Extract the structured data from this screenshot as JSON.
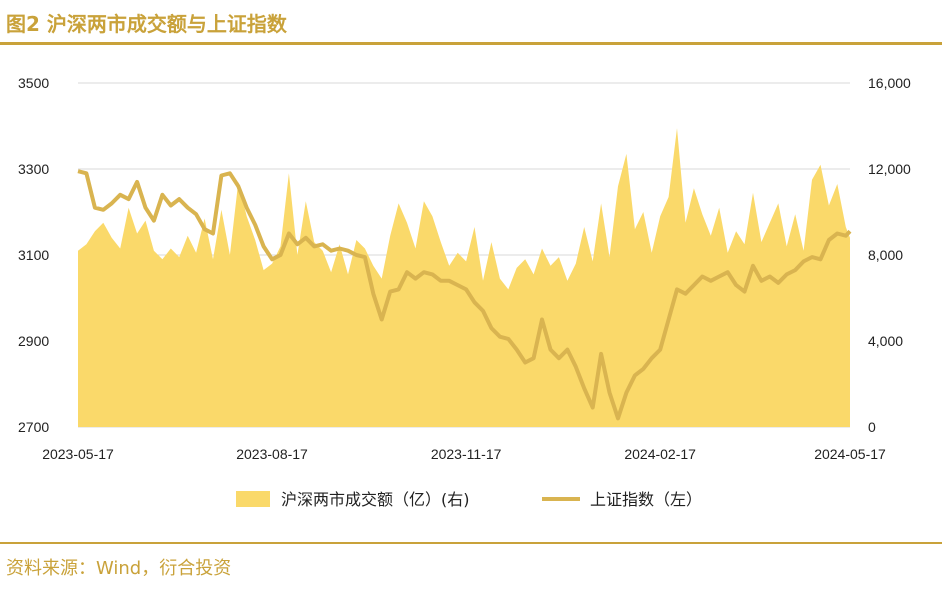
{
  "header": {
    "title": "图2  沪深两市成交额与上证指数"
  },
  "footer": {
    "source": "资料来源：Wind，衍合投资"
  },
  "colors": {
    "accent": "#C9A23A",
    "area_fill": "#FAD96A",
    "line": "#D9B450",
    "grid": "#D9D9D9"
  },
  "chart_data": {
    "type": "area",
    "title": "沪深两市成交额与上证指数",
    "x_ticks": [
      "2023-05-17",
      "2023-08-17",
      "2023-11-17",
      "2024-02-17",
      "2024-05-17"
    ],
    "y_left": {
      "ticks": [
        "3500",
        "3300",
        "3100",
        "2900",
        "2700"
      ],
      "range": [
        2700,
        3500
      ]
    },
    "y_right": {
      "ticks": [
        "16,000",
        "12,000",
        "8,000",
        "4,000",
        "0"
      ],
      "range": [
        0,
        16000
      ]
    },
    "grid": true,
    "legend_position": "bottom",
    "series": [
      {
        "name": "沪深两市成交额（亿）(右)",
        "axis": "right",
        "type": "area",
        "x": [
          "2023-05-17",
          "2023-05-21",
          "2023-05-25",
          "2023-05-29",
          "2023-06-02",
          "2023-06-06",
          "2023-06-10",
          "2023-06-14",
          "2023-06-18",
          "2023-06-22",
          "2023-06-26",
          "2023-06-30",
          "2023-07-04",
          "2023-07-08",
          "2023-07-12",
          "2023-07-16",
          "2023-07-20",
          "2023-07-24",
          "2023-07-28",
          "2023-08-01",
          "2023-08-05",
          "2023-08-09",
          "2023-08-13",
          "2023-08-17",
          "2023-08-21",
          "2023-08-25",
          "2023-08-29",
          "2023-09-02",
          "2023-09-06",
          "2023-09-10",
          "2023-09-14",
          "2023-09-18",
          "2023-09-22",
          "2023-09-26",
          "2023-09-30",
          "2023-10-04",
          "2023-10-08",
          "2023-10-12",
          "2023-10-16",
          "2023-10-20",
          "2023-10-24",
          "2023-10-28",
          "2023-11-01",
          "2023-11-05",
          "2023-11-09",
          "2023-11-13",
          "2023-11-17",
          "2023-11-21",
          "2023-11-25",
          "2023-11-29",
          "2023-12-03",
          "2023-12-07",
          "2023-12-11",
          "2023-12-15",
          "2023-12-19",
          "2023-12-23",
          "2023-12-27",
          "2023-12-31",
          "2024-01-04",
          "2024-01-08",
          "2024-01-12",
          "2024-01-16",
          "2024-01-20",
          "2024-01-24",
          "2024-01-28",
          "2024-02-01",
          "2024-02-05",
          "2024-02-09",
          "2024-02-13",
          "2024-02-17",
          "2024-02-21",
          "2024-02-25",
          "2024-02-29",
          "2024-03-04",
          "2024-03-08",
          "2024-03-12",
          "2024-03-16",
          "2024-03-20",
          "2024-03-24",
          "2024-03-28",
          "2024-04-01",
          "2024-04-05",
          "2024-04-09",
          "2024-04-13",
          "2024-04-17",
          "2024-04-21",
          "2024-04-25",
          "2024-04-29",
          "2024-05-03",
          "2024-05-07",
          "2024-05-11",
          "2024-05-15",
          "2024-05-17"
        ],
        "values": [
          8200,
          8500,
          9100,
          9500,
          8800,
          8300,
          10200,
          9000,
          9600,
          8200,
          7800,
          8300,
          7900,
          8900,
          8100,
          9700,
          7800,
          10100,
          8000,
          11400,
          9800,
          8700,
          7300,
          7600,
          8400,
          11800,
          8000,
          10500,
          8600,
          8200,
          7200,
          8500,
          7100,
          8700,
          8300,
          7500,
          6900,
          8900,
          10400,
          9500,
          8300,
          10500,
          9800,
          8600,
          7500,
          8100,
          7700,
          9300,
          6800,
          8600,
          6900,
          6400,
          7400,
          7800,
          7100,
          8300,
          7500,
          7900,
          6800,
          7600,
          9300,
          7700,
          10400,
          7900,
          11200,
          12700,
          9200,
          10000,
          8100,
          9800,
          10700,
          13900,
          9500,
          11100,
          9900,
          8900,
          10200,
          8100,
          9100,
          8500,
          10900,
          8600,
          9500,
          10400,
          8400,
          9900,
          8200,
          11500,
          12200,
          10300,
          11300,
          9300,
          8800
        ]
      },
      {
        "name": "上证指数（左）",
        "axis": "left",
        "type": "line",
        "x": [
          "2023-05-17",
          "2023-05-21",
          "2023-05-25",
          "2023-05-29",
          "2023-06-02",
          "2023-06-06",
          "2023-06-10",
          "2023-06-14",
          "2023-06-18",
          "2023-06-22",
          "2023-06-26",
          "2023-06-30",
          "2023-07-04",
          "2023-07-08",
          "2023-07-12",
          "2023-07-16",
          "2023-07-20",
          "2023-07-24",
          "2023-07-28",
          "2023-08-01",
          "2023-08-05",
          "2023-08-09",
          "2023-08-13",
          "2023-08-17",
          "2023-08-21",
          "2023-08-25",
          "2023-08-29",
          "2023-09-02",
          "2023-09-06",
          "2023-09-10",
          "2023-09-14",
          "2023-09-18",
          "2023-09-22",
          "2023-09-26",
          "2023-09-30",
          "2023-10-04",
          "2023-10-08",
          "2023-10-12",
          "2023-10-16",
          "2023-10-20",
          "2023-10-24",
          "2023-10-28",
          "2023-11-01",
          "2023-11-05",
          "2023-11-09",
          "2023-11-13",
          "2023-11-17",
          "2023-11-21",
          "2023-11-25",
          "2023-11-29",
          "2023-12-03",
          "2023-12-07",
          "2023-12-11",
          "2023-12-15",
          "2023-12-19",
          "2023-12-23",
          "2023-12-27",
          "2023-12-31",
          "2024-01-04",
          "2024-01-08",
          "2024-01-12",
          "2024-01-16",
          "2024-01-20",
          "2024-01-24",
          "2024-01-28",
          "2024-02-01",
          "2024-02-05",
          "2024-02-09",
          "2024-02-13",
          "2024-02-17",
          "2024-02-21",
          "2024-02-25",
          "2024-02-29",
          "2024-03-04",
          "2024-03-08",
          "2024-03-12",
          "2024-03-16",
          "2024-03-20",
          "2024-03-24",
          "2024-03-28",
          "2024-04-01",
          "2024-04-05",
          "2024-04-09",
          "2024-04-13",
          "2024-04-17",
          "2024-04-21",
          "2024-04-25",
          "2024-04-29",
          "2024-05-03",
          "2024-05-07",
          "2024-05-11",
          "2024-05-15",
          "2024-05-17"
        ],
        "values": [
          3295,
          3290,
          3210,
          3205,
          3220,
          3240,
          3230,
          3270,
          3210,
          3180,
          3240,
          3215,
          3230,
          3210,
          3195,
          3160,
          3150,
          3285,
          3290,
          3260,
          3210,
          3170,
          3120,
          3090,
          3100,
          3150,
          3125,
          3140,
          3120,
          3125,
          3110,
          3115,
          3110,
          3100,
          3095,
          3010,
          2950,
          3015,
          3020,
          3060,
          3045,
          3060,
          3055,
          3040,
          3040,
          3030,
          3020,
          2990,
          2970,
          2930,
          2910,
          2905,
          2880,
          2850,
          2860,
          2950,
          2880,
          2860,
          2880,
          2840,
          2790,
          2745,
          2870,
          2780,
          2720,
          2780,
          2820,
          2835,
          2860,
          2880,
          2950,
          3020,
          3010,
          3030,
          3050,
          3040,
          3050,
          3060,
          3030,
          3015,
          3075,
          3040,
          3050,
          3035,
          3055,
          3065,
          3085,
          3095,
          3090,
          3135,
          3150,
          3145,
          3155
        ]
      }
    ]
  }
}
